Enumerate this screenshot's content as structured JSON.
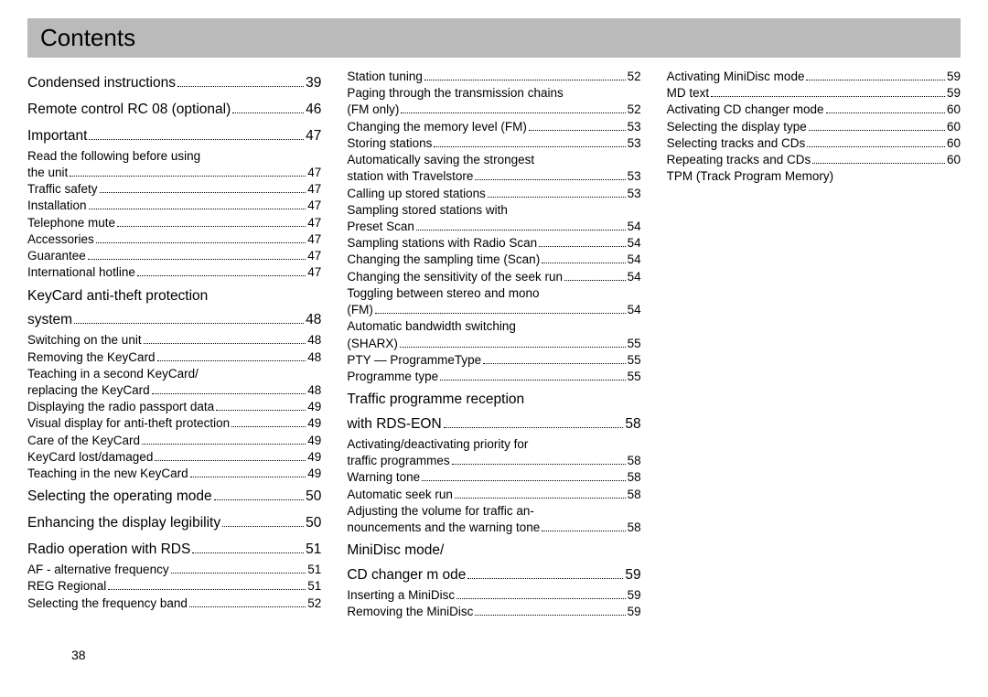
{
  "title": "Contents",
  "page_number": "38",
  "colors": {
    "title_bg": "#bababa",
    "text": "#000000",
    "page_bg": "#ffffff"
  },
  "fonts": {
    "title_size": 26,
    "section_size": 15.5,
    "sub_size": 13.5
  },
  "columns": [
    [
      {
        "t": "section",
        "label": "Condensed instructions",
        "page": "39"
      },
      {
        "t": "section",
        "label": "Remote control RC 08 (optional)",
        "page": "46"
      },
      {
        "t": "section",
        "label": "Important",
        "page": "47"
      },
      {
        "t": "sub-cont",
        "label": "Read the following before using"
      },
      {
        "t": "sub",
        "label": "the unit",
        "page": "47"
      },
      {
        "t": "sub",
        "label": "Traffic safety",
        "page": "47"
      },
      {
        "t": "sub",
        "label": "Installation",
        "page": "47"
      },
      {
        "t": "sub",
        "label": "Telephone mute",
        "page": "47"
      },
      {
        "t": "sub",
        "label": "Accessories",
        "page": "47"
      },
      {
        "t": "sub",
        "label": "Guarantee",
        "page": "47"
      },
      {
        "t": "sub",
        "label": "International hotline",
        "page": "47"
      },
      {
        "t": "section-cont",
        "label": "KeyCard anti-theft protection"
      },
      {
        "t": "section",
        "label": "system",
        "page": "48"
      },
      {
        "t": "sub",
        "label": "Switching on the unit",
        "page": "48"
      },
      {
        "t": "sub",
        "label": "Removing the KeyCard",
        "page": "48"
      },
      {
        "t": "sub-cont",
        "label": " Teaching in  a second KeyCard/"
      },
      {
        "t": "sub",
        "label": "replacing the KeyCard",
        "page": "48"
      },
      {
        "t": "sub",
        "label": "Displaying the radio passport data",
        "page": "49"
      },
      {
        "t": "sub",
        "label": "Visual display for anti-theft protection",
        "page": "49"
      },
      {
        "t": "sub",
        "label": "Care of the KeyCard",
        "page": "49"
      },
      {
        "t": "sub",
        "label": "KeyCard lost/damaged",
        "page": "49"
      },
      {
        "t": "sub",
        "label": "Teaching in the new KeyCard",
        "page": "49"
      },
      {
        "t": "section",
        "label": "Selecting the operating mode",
        "page": "50"
      },
      {
        "t": "section",
        "label": "Enhancing the display legibility",
        "page": "50"
      },
      {
        "t": "section",
        "label": "Radio operation with    RDS",
        "page": "51"
      },
      {
        "t": "sub",
        "label": "AF - alternative frequency",
        "page": "51"
      },
      {
        "t": "sub",
        "label": "REG Regional",
        "page": "51"
      },
      {
        "t": "sub",
        "label": "Selecting the frequency band",
        "page": "52"
      }
    ],
    [
      {
        "t": "sub",
        "label": "Station tuning",
        "page": "52"
      },
      {
        "t": "sub-cont",
        "label": "Paging through the transmission chains"
      },
      {
        "t": "sub",
        "label": "(FM only)",
        "page": "52"
      },
      {
        "t": "sub",
        "label": "Changing the memory level (FM)",
        "page": "53"
      },
      {
        "t": "sub",
        "label": "Storing stations",
        "page": "53"
      },
      {
        "t": "sub-cont",
        "label": "Automatically saving the strongest"
      },
      {
        "t": "sub",
        "label": "station with Travelstore",
        "page": "53"
      },
      {
        "t": "sub",
        "label": "Calling up stored stations",
        "page": "53"
      },
      {
        "t": "sub-cont",
        "label": "Sampling stored stations with"
      },
      {
        "t": "sub",
        "label": "Preset Scan",
        "page": "54"
      },
      {
        "t": "sub",
        "label": "Sampling stations with Radio Scan",
        "page": "54"
      },
      {
        "t": "sub",
        "label": "Changing the sampling time (Scan)",
        "page": "54"
      },
      {
        "t": "sub",
        "label": "Changing the sensitivity of the seek run",
        "page": "54"
      },
      {
        "t": "sub-cont",
        "label": "Toggling between stereo and mono"
      },
      {
        "t": "sub",
        "label": "(FM)",
        "page": "54"
      },
      {
        "t": "sub-cont",
        "label": "Automatic bandwidth switching"
      },
      {
        "t": "sub",
        "label": "(SHARX)",
        "page": "55"
      },
      {
        "t": "sub",
        "label": "PTY — ProgrammeType",
        "page": "55"
      },
      {
        "t": "sub",
        "label": "Programme type",
        "page": "55"
      },
      {
        "t": "section-cont",
        "label": "Traffic programme reception"
      },
      {
        "t": "section",
        "label": "with RDS-EON",
        "page": "58"
      },
      {
        "t": "sub-cont",
        "label": "Activating/deactivating priority for"
      },
      {
        "t": "sub",
        "label": "traffic programmes",
        "page": "58"
      },
      {
        "t": "sub",
        "label": "Warning tone",
        "page": "58"
      },
      {
        "t": "sub",
        "label": "Automatic seek run",
        "page": "58"
      },
      {
        "t": "sub-cont",
        "label": "Adjusting the volume for traffic an-"
      },
      {
        "t": "sub",
        "label": "nouncements and the warning tone",
        "page": "58"
      },
      {
        "t": "section-cont",
        "label": "MiniDisc mode/"
      },
      {
        "t": "section",
        "label": "CD changer m ode",
        "page": "59"
      },
      {
        "t": "sub",
        "label": "Inserting a MiniDisc",
        "page": "59"
      },
      {
        "t": "sub",
        "label": "Removing the MiniDisc",
        "page": "59"
      }
    ],
    [
      {
        "t": "sub",
        "label": "Activating MiniDisc mode",
        "page": "59"
      },
      {
        "t": "sub",
        "label": "MD text",
        "page": "59"
      },
      {
        "t": "sub",
        "label": "Activating CD changer mode",
        "page": "60"
      },
      {
        "t": "sub",
        "label": "Selecting the display type",
        "page": "60"
      },
      {
        "t": "sub",
        "label": "Selecting tracks and CDs",
        "page": "60"
      },
      {
        "t": "sub",
        "label": "Repeating tracks and CDs",
        "page": "60"
      },
      {
        "t": "sub-nopage",
        "label": "TPM (Track Program Memory)"
      }
    ]
  ]
}
